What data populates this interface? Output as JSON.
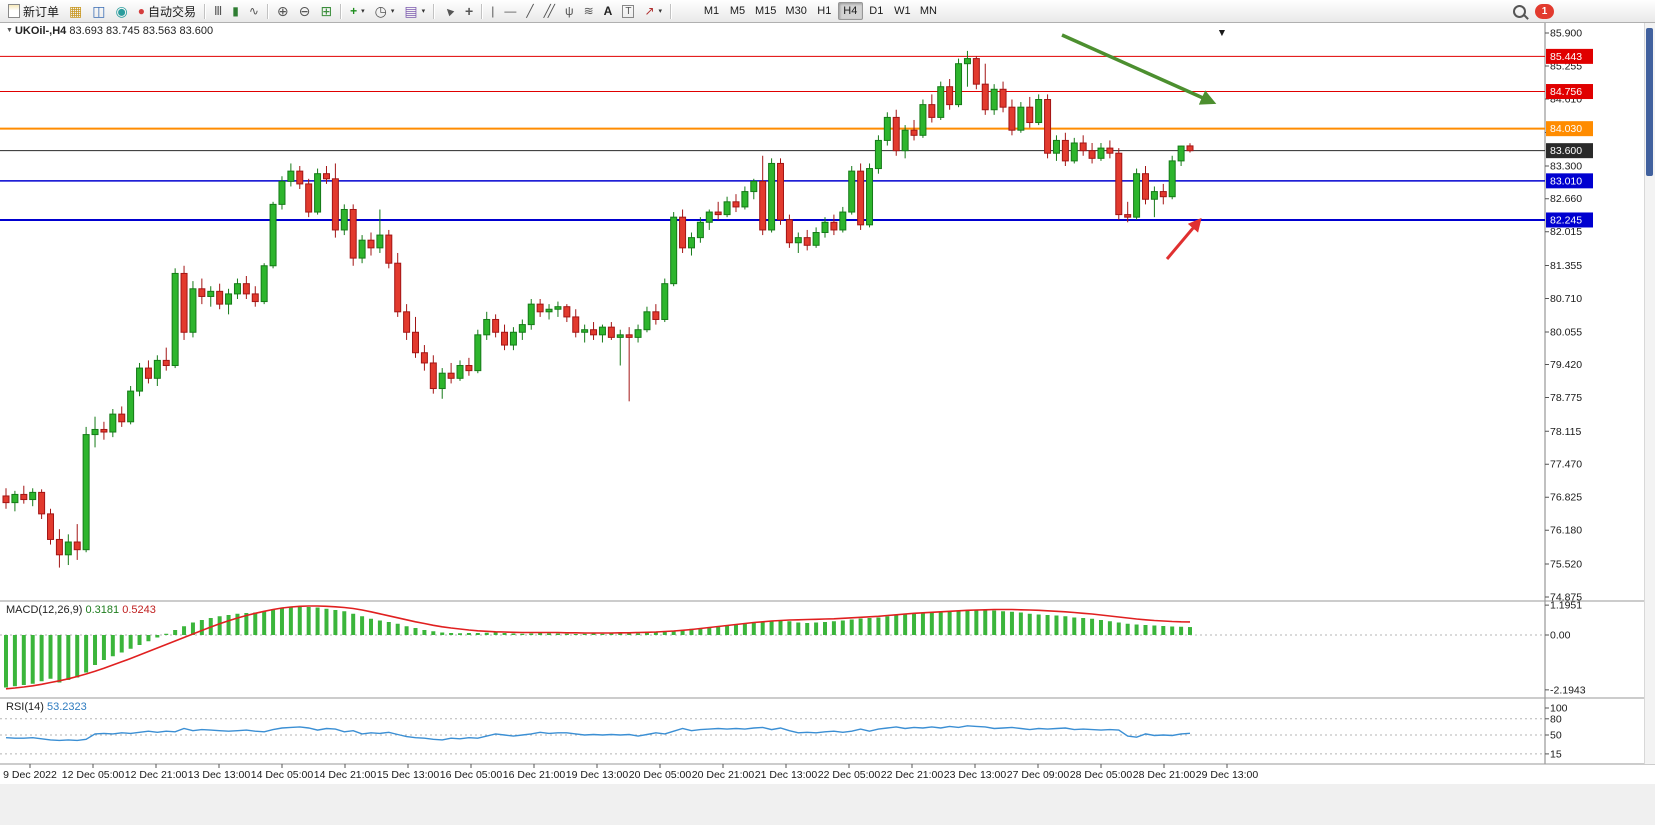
{
  "colors": {
    "up": "#2db52d",
    "up_stroke": "#157a18",
    "down": "#e23a2e",
    "down_stroke": "#a31515",
    "macd_bar": "#3bb53b",
    "macd_signal": "#e02020",
    "rsi_line": "#3b8fd4",
    "level_red": "#e00000",
    "level_orange": "#ff8c00",
    "level_blue": "#0000d0",
    "level_black": "#2a2a2a"
  },
  "icons": {
    "collapse": "▼",
    "caret": "▾",
    "market_watch": "▦",
    "data_window": "◫",
    "navigator": "◉",
    "autotrade_dot": "●",
    "bars": "Ⅲ",
    "candles": "▮",
    "line_chart": "∿",
    "zoom_in": "⊕",
    "zoom_out": "⊖",
    "tile": "⊞",
    "indicators_plus": "+",
    "periods": "◷",
    "templates": "▤",
    "cursor": "▲",
    "crosshair": "+",
    "vline": "|",
    "hline": "—",
    "trendline": "╱",
    "channel": "╱╱",
    "pitchfork": "ψ",
    "fibonacci": "≋",
    "text": "A",
    "label": "T",
    "shapes": "↗",
    "shift_marker": "▼"
  },
  "toolbar": {
    "new_order": "新订单",
    "auto_trading": "自动交易",
    "timeframes": [
      "M1",
      "M5",
      "M15",
      "M30",
      "H1",
      "H4",
      "D1",
      "W1",
      "MN"
    ],
    "active_timeframe": "H4",
    "notification_count": "1"
  },
  "chart": {
    "symbol_period": "UKOil-,H4",
    "ohlc": "83.693 83.745 83.563 83.600"
  },
  "indicators": {
    "macd_name": "MACD(12,26,9)",
    "macd_value": "0.3181",
    "macd_signal": "0.5243",
    "rsi_name": "RSI(14)",
    "rsi_value": "53.2323"
  },
  "annotations": {
    "trend_arrow": {
      "color": "#4c8f2f",
      "from": [
        1062,
        13
      ],
      "to": [
        1212,
        80
      ]
    },
    "support_arrow": {
      "color": "#e03030",
      "from": [
        1167,
        237
      ],
      "to": [
        1199,
        199
      ]
    }
  },
  "chart_data": {
    "type": "candlestick",
    "symbol": "UKOil-,H4",
    "ohlc_current": {
      "open": 83.693,
      "high": 83.745,
      "low": 83.563,
      "close": 83.6
    },
    "price_axis": {
      "max": 85.9,
      "min": 74.875,
      "gridline_labels": [
        "85.900",
        "85.255",
        "84.610",
        "83.955",
        "83.300",
        "82.660",
        "82.015",
        "81.355",
        "80.710",
        "80.055",
        "79.420",
        "78.775",
        "78.115",
        "77.470",
        "76.825",
        "76.180",
        "75.520",
        "74.875"
      ]
    },
    "horizontal_levels": [
      {
        "price": 85.443,
        "label": "85.443",
        "color": "#e00000",
        "width": 1
      },
      {
        "price": 84.756,
        "label": "84.756",
        "color": "#e00000",
        "width": 1
      },
      {
        "price": 84.03,
        "label": "84.030",
        "color": "#ff8c00",
        "width": 2
      },
      {
        "price": 83.6,
        "label": "83.600",
        "color": "#2a2a2a",
        "width": 1
      },
      {
        "price": 83.01,
        "label": "83.010",
        "color": "#0000d0",
        "width": 1.5
      },
      {
        "price": 82.245,
        "label": "82.245",
        "color": "#0000d0",
        "width": 2
      }
    ],
    "time_labels": [
      "9 Dec 2022",
      "12 Dec 05:00",
      "12 Dec 21:00",
      "13 Dec 13:00",
      "14 Dec 05:00",
      "14 Dec 21:00",
      "15 Dec 13:00",
      "16 Dec 05:00",
      "16 Dec 21:00",
      "19 Dec 13:00",
      "20 Dec 05:00",
      "20 Dec 21:00",
      "21 Dec 13:00",
      "22 Dec 05:00",
      "22 Dec 21:00",
      "23 Dec 13:00",
      "27 Dec 09:00",
      "28 Dec 05:00",
      "28 Dec 21:00",
      "29 Dec 13:00"
    ],
    "candles": [
      [
        76.85,
        77,
        76.6,
        76.72
      ],
      [
        76.72,
        76.95,
        76.55,
        76.88
      ],
      [
        76.88,
        77.05,
        76.7,
        76.78
      ],
      [
        76.78,
        77,
        76.65,
        76.92
      ],
      [
        76.92,
        76.98,
        76.4,
        76.5
      ],
      [
        76.5,
        76.6,
        75.9,
        76
      ],
      [
        76,
        76.2,
        75.45,
        75.7
      ],
      [
        75.7,
        76.1,
        75.5,
        75.95
      ],
      [
        75.95,
        76.3,
        75.6,
        75.8
      ],
      [
        75.8,
        78.2,
        75.75,
        78.05
      ],
      [
        78.05,
        78.4,
        77.8,
        78.15
      ],
      [
        78.15,
        78.3,
        77.95,
        78.1
      ],
      [
        78.1,
        78.55,
        78,
        78.45
      ],
      [
        78.45,
        78.6,
        78.2,
        78.3
      ],
      [
        78.3,
        79,
        78.25,
        78.9
      ],
      [
        78.9,
        79.45,
        78.8,
        79.35
      ],
      [
        79.35,
        79.5,
        79.05,
        79.15
      ],
      [
        79.15,
        79.6,
        79,
        79.5
      ],
      [
        79.5,
        79.75,
        79.3,
        79.4
      ],
      [
        79.4,
        81.3,
        79.35,
        81.2
      ],
      [
        81.2,
        81.35,
        79.9,
        80.05
      ],
      [
        80.05,
        81.05,
        79.95,
        80.9
      ],
      [
        80.9,
        81.1,
        80.6,
        80.75
      ],
      [
        80.75,
        80.95,
        80.55,
        80.85
      ],
      [
        80.85,
        81,
        80.5,
        80.6
      ],
      [
        80.6,
        80.9,
        80.4,
        80.8
      ],
      [
        80.8,
        81.1,
        80.7,
        81
      ],
      [
        81,
        81.15,
        80.7,
        80.8
      ],
      [
        80.8,
        80.95,
        80.55,
        80.65
      ],
      [
        80.65,
        81.4,
        80.6,
        81.35
      ],
      [
        81.35,
        82.6,
        81.3,
        82.55
      ],
      [
        82.55,
        83.1,
        82.45,
        83
      ],
      [
        83,
        83.35,
        82.9,
        83.2
      ],
      [
        83.2,
        83.3,
        82.85,
        82.95
      ],
      [
        82.95,
        83.05,
        82.3,
        82.4
      ],
      [
        82.4,
        83.25,
        82.35,
        83.15
      ],
      [
        83.15,
        83.3,
        82.95,
        83.05
      ],
      [
        83.05,
        83.35,
        81.9,
        82.05
      ],
      [
        82.05,
        82.55,
        81.95,
        82.45
      ],
      [
        82.45,
        82.55,
        81.35,
        81.5
      ],
      [
        81.5,
        81.95,
        81.4,
        81.85
      ],
      [
        81.85,
        82,
        81.55,
        81.7
      ],
      [
        81.7,
        82.45,
        81.6,
        81.95
      ],
      [
        81.95,
        82.05,
        81.3,
        81.4
      ],
      [
        81.4,
        81.6,
        80.35,
        80.45
      ],
      [
        80.45,
        80.6,
        79.9,
        80.05
      ],
      [
        80.05,
        80.35,
        79.55,
        79.65
      ],
      [
        79.65,
        79.8,
        79.3,
        79.45
      ],
      [
        79.45,
        79.6,
        78.85,
        78.95
      ],
      [
        78.95,
        79.35,
        78.75,
        79.25
      ],
      [
        79.25,
        79.45,
        79.05,
        79.15
      ],
      [
        79.15,
        79.5,
        79.1,
        79.4
      ],
      [
        79.4,
        79.55,
        79.2,
        79.3
      ],
      [
        79.3,
        80.1,
        79.25,
        80
      ],
      [
        80,
        80.45,
        79.9,
        80.3
      ],
      [
        80.3,
        80.4,
        79.95,
        80.05
      ],
      [
        80.05,
        80.2,
        79.7,
        79.8
      ],
      [
        79.8,
        80.15,
        79.7,
        80.05
      ],
      [
        80.05,
        80.3,
        79.9,
        80.2
      ],
      [
        80.2,
        80.7,
        80.1,
        80.6
      ],
      [
        80.6,
        80.7,
        80.35,
        80.45
      ],
      [
        80.45,
        80.6,
        80.3,
        80.5
      ],
      [
        80.5,
        80.65,
        80.35,
        80.55
      ],
      [
        80.55,
        80.6,
        80.25,
        80.35
      ],
      [
        80.35,
        80.5,
        79.95,
        80.05
      ],
      [
        80.05,
        80.2,
        79.85,
        80.1
      ],
      [
        80.1,
        80.25,
        79.9,
        80
      ],
      [
        80,
        80.2,
        79.85,
        80.15
      ],
      [
        80.15,
        80.25,
        79.9,
        79.95
      ],
      [
        79.95,
        80.1,
        79.4,
        80
      ],
      [
        80,
        80.15,
        78.7,
        79.95
      ],
      [
        79.95,
        80.2,
        79.85,
        80.1
      ],
      [
        80.1,
        80.55,
        80.05,
        80.45
      ],
      [
        80.45,
        80.6,
        80.2,
        80.3
      ],
      [
        80.3,
        81.1,
        80.25,
        81
      ],
      [
        81,
        82.4,
        80.95,
        82.3
      ],
      [
        82.3,
        82.45,
        81.6,
        81.7
      ],
      [
        81.7,
        82,
        81.55,
        81.9
      ],
      [
        81.9,
        82.3,
        81.8,
        82.2
      ],
      [
        82.2,
        82.45,
        82.05,
        82.4
      ],
      [
        82.4,
        82.6,
        82.25,
        82.35
      ],
      [
        82.35,
        82.7,
        82.3,
        82.6
      ],
      [
        82.6,
        82.75,
        82.4,
        82.5
      ],
      [
        82.5,
        82.9,
        82.45,
        82.8
      ],
      [
        82.8,
        83.05,
        82.65,
        83
      ],
      [
        83,
        83.5,
        81.95,
        82.05
      ],
      [
        82.05,
        83.45,
        82,
        83.35
      ],
      [
        83.35,
        83.45,
        82.15,
        82.25
      ],
      [
        82.25,
        82.35,
        81.7,
        81.8
      ],
      [
        81.8,
        82,
        81.6,
        81.9
      ],
      [
        81.9,
        82.05,
        81.65,
        81.75
      ],
      [
        81.75,
        82.1,
        81.7,
        82
      ],
      [
        82,
        82.3,
        81.9,
        82.2
      ],
      [
        82.2,
        82.35,
        81.95,
        82.05
      ],
      [
        82.05,
        82.5,
        82,
        82.4
      ],
      [
        82.4,
        83.3,
        82.35,
        83.2
      ],
      [
        83.2,
        83.35,
        82.05,
        82.15
      ],
      [
        82.15,
        83.35,
        82.1,
        83.25
      ],
      [
        83.25,
        83.9,
        83.15,
        83.8
      ],
      [
        83.8,
        84.35,
        83.7,
        84.25
      ],
      [
        84.25,
        84.4,
        83.5,
        83.6
      ],
      [
        83.6,
        84.1,
        83.45,
        84
      ],
      [
        84,
        84.2,
        83.8,
        83.9
      ],
      [
        83.9,
        84.6,
        83.85,
        84.5
      ],
      [
        84.5,
        84.7,
        84.15,
        84.25
      ],
      [
        84.25,
        84.95,
        84.2,
        84.85
      ],
      [
        84.85,
        85,
        84.4,
        84.5
      ],
      [
        84.5,
        85.4,
        84.45,
        85.3
      ],
      [
        85.3,
        85.55,
        84.85,
        85.4
      ],
      [
        85.4,
        85.45,
        84.8,
        84.9
      ],
      [
        84.9,
        85.3,
        84.3,
        84.4
      ],
      [
        84.4,
        84.9,
        84.3,
        84.8
      ],
      [
        84.8,
        84.95,
        84.35,
        84.45
      ],
      [
        84.45,
        84.6,
        83.9,
        84
      ],
      [
        84,
        84.55,
        83.95,
        84.45
      ],
      [
        84.45,
        84.65,
        84.05,
        84.15
      ],
      [
        84.15,
        84.7,
        84.1,
        84.6
      ],
      [
        84.6,
        84.7,
        83.45,
        83.55
      ],
      [
        83.55,
        83.9,
        83.4,
        83.8
      ],
      [
        83.8,
        83.95,
        83.3,
        83.4
      ],
      [
        83.4,
        83.85,
        83.35,
        83.75
      ],
      [
        83.75,
        83.9,
        83.5,
        83.6
      ],
      [
        83.6,
        83.75,
        83.35,
        83.45
      ],
      [
        83.45,
        83.75,
        83.4,
        83.65
      ],
      [
        83.65,
        83.8,
        83.45,
        83.55
      ],
      [
        83.55,
        83.65,
        82.25,
        82.35
      ],
      [
        82.35,
        82.6,
        82.2,
        82.3
      ],
      [
        82.3,
        83.25,
        82.25,
        83.15
      ],
      [
        83.15,
        83.3,
        82.55,
        82.65
      ],
      [
        82.65,
        82.9,
        82.3,
        82.8
      ],
      [
        82.8,
        82.95,
        82.55,
        82.7
      ],
      [
        82.7,
        83.5,
        82.65,
        83.4
      ],
      [
        83.4,
        83.7,
        83.3,
        83.69
      ],
      [
        83.693,
        83.745,
        83.563,
        83.6
      ]
    ],
    "macd": {
      "params": "12,26,9",
      "value": 0.3181,
      "signal_value": 0.5243,
      "axis_labels": [
        {
          "v": 1.1951,
          "t": "1.1951"
        },
        {
          "v": 0,
          "t": "0.00"
        },
        {
          "v": -2.1943,
          "t": "-2.1943"
        }
      ],
      "histogram": [
        -2.1,
        -2.05,
        -2.0,
        -1.95,
        -1.85,
        -1.75,
        -1.9,
        -1.8,
        -1.7,
        -1.5,
        -1.2,
        -1.0,
        -0.85,
        -0.7,
        -0.55,
        -0.4,
        -0.25,
        -0.1,
        0.05,
        0.2,
        0.35,
        0.5,
        0.6,
        0.68,
        0.75,
        0.8,
        0.85,
        0.88,
        0.9,
        0.95,
        1.0,
        1.08,
        1.12,
        1.15,
        1.12,
        1.1,
        1.05,
        1.0,
        0.95,
        0.85,
        0.75,
        0.65,
        0.58,
        0.52,
        0.45,
        0.35,
        0.28,
        0.2,
        0.15,
        0.1,
        0.08,
        0.07,
        0.08,
        0.08,
        0.09,
        0.1,
        0.08,
        0.06,
        0.05,
        0.06,
        0.08,
        0.07,
        0.06,
        0.05,
        0.04,
        0.05,
        0.06,
        0.05,
        0.06,
        0.07,
        0.08,
        0.07,
        0.08,
        0.1,
        0.12,
        0.15,
        0.2,
        0.25,
        0.28,
        0.32,
        0.36,
        0.4,
        0.42,
        0.45,
        0.48,
        0.52,
        0.55,
        0.58,
        0.55,
        0.5,
        0.48,
        0.5,
        0.52,
        0.55,
        0.58,
        0.62,
        0.66,
        0.68,
        0.7,
        0.75,
        0.8,
        0.82,
        0.85,
        0.88,
        0.9,
        0.92,
        0.95,
        0.97,
        1.0,
        1.02,
        1.0,
        0.98,
        0.95,
        0.93,
        0.9,
        0.85,
        0.82,
        0.8,
        0.78,
        0.75,
        0.7,
        0.68,
        0.65,
        0.6,
        0.55,
        0.5,
        0.45,
        0.42,
        0.4,
        0.38,
        0.36,
        0.34,
        0.33,
        0.3181
      ],
      "signal": [
        -2.15,
        -2.12,
        -2.08,
        -2.03,
        -1.97,
        -1.9,
        -1.83,
        -1.75,
        -1.66,
        -1.56,
        -1.45,
        -1.33,
        -1.2,
        -1.07,
        -0.94,
        -0.8,
        -0.66,
        -0.52,
        -0.38,
        -0.24,
        -0.1,
        0.04,
        0.18,
        0.32,
        0.45,
        0.57,
        0.68,
        0.78,
        0.87,
        0.95,
        1.02,
        1.08,
        1.12,
        1.15,
        1.16,
        1.16,
        1.15,
        1.13,
        1.1,
        1.06,
        1.0,
        0.93,
        0.85,
        0.77,
        0.69,
        0.61,
        0.53,
        0.46,
        0.39,
        0.33,
        0.28,
        0.24,
        0.2,
        0.17,
        0.15,
        0.13,
        0.12,
        0.11,
        0.1,
        0.1,
        0.1,
        0.1,
        0.1,
        0.09,
        0.09,
        0.08,
        0.08,
        0.08,
        0.08,
        0.09,
        0.09,
        0.1,
        0.11,
        0.12,
        0.14,
        0.16,
        0.19,
        0.22,
        0.26,
        0.3,
        0.34,
        0.38,
        0.42,
        0.46,
        0.5,
        0.53,
        0.56,
        0.58,
        0.6,
        0.61,
        0.62,
        0.63,
        0.64,
        0.65,
        0.67,
        0.69,
        0.71,
        0.73,
        0.75,
        0.78,
        0.81,
        0.84,
        0.87,
        0.89,
        0.91,
        0.93,
        0.95,
        0.97,
        0.99,
        1.0,
        1.01,
        1.02,
        1.02,
        1.02,
        1.01,
        1.0,
        0.99,
        0.97,
        0.95,
        0.93,
        0.9,
        0.87,
        0.84,
        0.8,
        0.76,
        0.72,
        0.68,
        0.64,
        0.61,
        0.58,
        0.56,
        0.54,
        0.53,
        0.5243
      ]
    },
    "rsi": {
      "period": 14,
      "value": 53.2323,
      "level_lines": [
        {
          "v": 100,
          "t": "100"
        },
        {
          "v": 80,
          "t": "80"
        },
        {
          "v": 50,
          "t": "50"
        },
        {
          "v": 15,
          "t": "15"
        }
      ],
      "values": [
        45,
        44,
        44,
        45,
        43,
        41,
        40,
        41,
        40,
        42,
        52,
        53,
        52,
        54,
        53,
        55,
        57,
        55,
        57,
        56,
        62,
        58,
        60,
        59,
        58,
        57,
        58,
        59,
        57,
        56,
        60,
        63,
        64,
        65,
        63,
        59,
        62,
        61,
        56,
        58,
        52,
        54,
        53,
        55,
        51,
        47,
        45,
        44,
        42,
        41,
        44,
        43,
        45,
        44,
        48,
        52,
        50,
        48,
        50,
        52,
        55,
        53,
        54,
        54,
        52,
        50,
        51,
        50,
        51,
        50,
        51,
        48,
        51,
        54,
        52,
        57,
        62,
        58,
        60,
        61,
        62,
        61,
        62,
        61,
        63,
        64,
        60,
        63,
        58,
        54,
        55,
        54,
        56,
        57,
        55,
        57,
        61,
        57,
        61,
        63,
        65,
        62,
        64,
        63,
        65,
        63,
        66,
        64,
        67,
        66,
        65,
        62,
        63,
        64,
        62,
        60,
        62,
        61,
        62,
        63,
        60,
        61,
        60,
        59,
        60,
        59,
        48,
        46,
        52,
        49,
        50,
        49,
        52,
        53.23
      ]
    }
  }
}
